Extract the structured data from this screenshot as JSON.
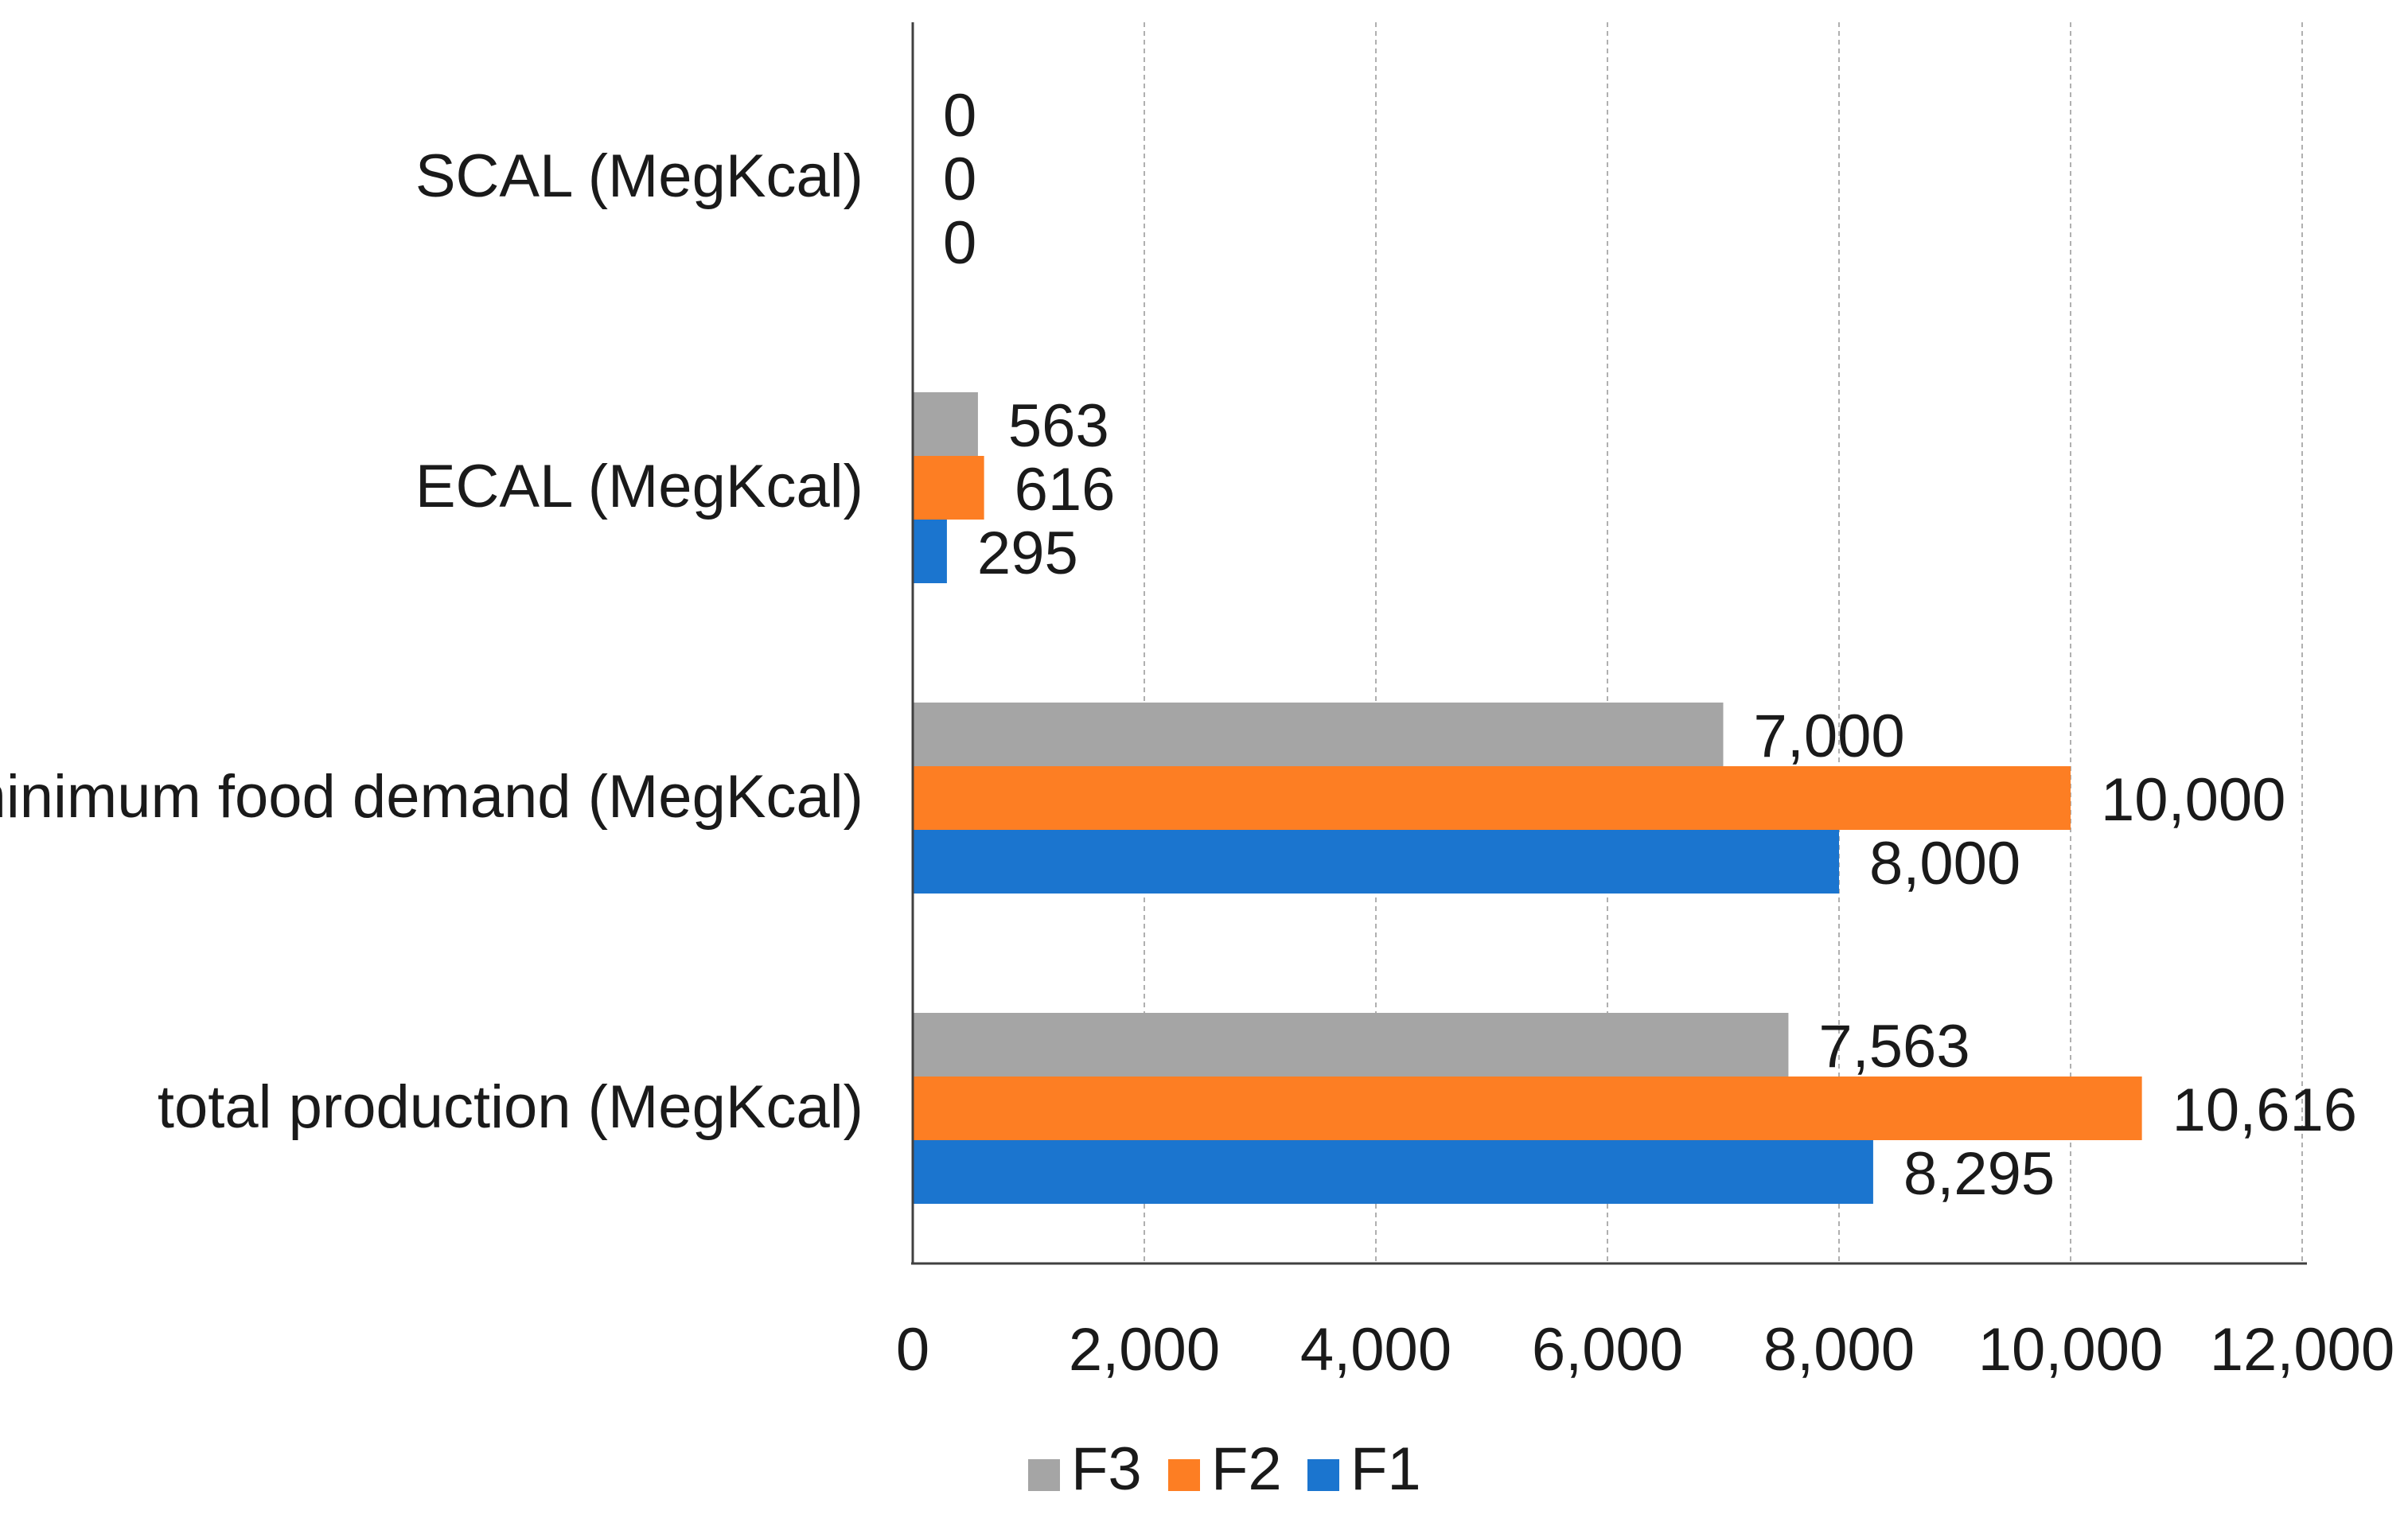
{
  "chart_data": {
    "type": "bar",
    "orientation": "horizontal",
    "title": "",
    "xlabel": "",
    "ylabel": "",
    "categories": [
      "SCAL (MegKcal)",
      "ECAL (MegKcal)",
      "minimum food demand (MegKcal)",
      "total production (MegKcal)"
    ],
    "series": [
      {
        "name": "F3",
        "color": "#a5a5a5",
        "values": [
          0,
          563,
          7000,
          7563
        ],
        "labels": [
          "0",
          "563",
          "7,000",
          "7,563"
        ]
      },
      {
        "name": "F2",
        "color": "#fd7e23",
        "values": [
          0,
          616,
          10000,
          10616
        ],
        "labels": [
          "0",
          "616",
          "10,000",
          "10,616"
        ]
      },
      {
        "name": "F1",
        "color": "#1b75cf",
        "values": [
          0,
          295,
          8000,
          8295
        ],
        "labels": [
          "0",
          "295",
          "8,000",
          "8,295"
        ]
      }
    ],
    "xlim": [
      0,
      12000
    ],
    "xticks": [
      0,
      2000,
      4000,
      6000,
      8000,
      10000,
      12000
    ],
    "xtick_labels": [
      "0",
      "2,000",
      "4,000",
      "6,000",
      "8,000",
      "10,000",
      "12,000"
    ],
    "grid": "vertical-dashed",
    "legend": {
      "position": "bottom",
      "order": [
        "F3",
        "F2",
        "F1"
      ]
    }
  }
}
